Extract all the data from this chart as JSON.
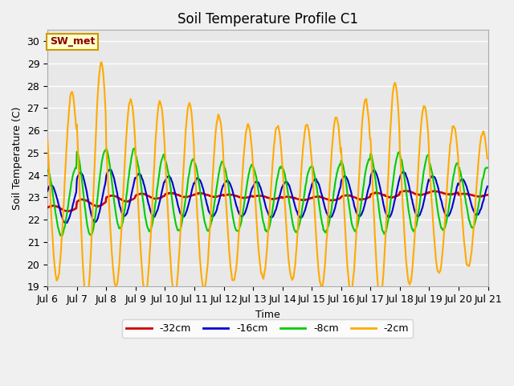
{
  "title": "Soil Temperature Profile C1",
  "xlabel": "Time",
  "ylabel": "Soil Temperature (C)",
  "ylim": [
    19.0,
    30.5
  ],
  "yticks": [
    19.0,
    20.0,
    21.0,
    22.0,
    23.0,
    24.0,
    25.0,
    26.0,
    27.0,
    28.0,
    29.0,
    30.0
  ],
  "x_labels": [
    "Jul 6",
    "Jul 7",
    "Jul 8",
    "Jul 9",
    "Jul 10",
    "Jul 11",
    "Jul 12",
    "Jul 13",
    "Jul 14",
    "Jul 15",
    "Jul 16",
    "Jul 17",
    "Jul 18",
    "Jul 19",
    "Jul 20",
    "Jul 21"
  ],
  "series": {
    "-32cm": {
      "color": "#cc0000",
      "linewidth": 1.8,
      "label": "-32cm"
    },
    "-16cm": {
      "color": "#0000cc",
      "linewidth": 1.5,
      "label": "-16cm"
    },
    "-8cm": {
      "color": "#00cc00",
      "linewidth": 1.5,
      "label": "-8cm"
    },
    "-2cm": {
      "color": "#ffaa00",
      "linewidth": 1.5,
      "label": "-2cm"
    }
  },
  "legend_label": "SW_met",
  "legend_bg": "#ffffcc",
  "legend_border": "#cc9900",
  "fig_bg": "#f0f0f0",
  "plot_bg": "#e8e8e8",
  "grid_color": "#ffffff",
  "title_fontsize": 12,
  "axis_fontsize": 9,
  "tick_fontsize": 9,
  "n_days": 15,
  "pts_per_day": 48,
  "amp_2cm": [
    4.2,
    5.3,
    4.2,
    4.3,
    4.3,
    3.9,
    3.5,
    3.4,
    3.5,
    3.8,
    4.3,
    4.8,
    4.0,
    3.3,
    3.0
  ],
  "mean_2cm": [
    23.5,
    23.7,
    23.2,
    23.0,
    22.9,
    22.8,
    22.75,
    22.8,
    22.8,
    22.8,
    23.1,
    23.3,
    23.1,
    22.9,
    22.9
  ],
  "phase_2cm": 0.58,
  "amp_8cm": [
    1.5,
    1.9,
    1.8,
    1.7,
    1.6,
    1.55,
    1.5,
    1.45,
    1.45,
    1.5,
    1.6,
    1.8,
    1.7,
    1.5,
    1.35
  ],
  "mean_8cm": [
    22.8,
    23.2,
    23.4,
    23.2,
    23.1,
    23.05,
    22.95,
    22.95,
    22.9,
    22.95,
    23.1,
    23.2,
    23.2,
    23.05,
    23.0
  ],
  "phase_8cm": 0.72,
  "amp_16cm": [
    0.85,
    1.1,
    1.05,
    0.95,
    0.9,
    0.85,
    0.8,
    0.8,
    0.8,
    0.85,
    0.9,
    1.05,
    1.0,
    0.9,
    0.8
  ],
  "mean_16cm": [
    22.7,
    23.0,
    23.2,
    23.1,
    23.05,
    23.0,
    22.95,
    22.9,
    22.9,
    22.95,
    23.05,
    23.15,
    23.15,
    23.05,
    23.0
  ],
  "phase_16cm": 0.87,
  "amp_32cm": [
    0.12,
    0.15,
    0.13,
    0.11,
    0.09,
    0.08,
    0.07,
    0.07,
    0.07,
    0.08,
    0.09,
    0.1,
    0.09,
    0.07,
    0.06
  ],
  "mean_32cm": [
    22.5,
    22.75,
    22.95,
    23.05,
    23.1,
    23.1,
    23.05,
    23.0,
    22.95,
    22.95,
    23.0,
    23.1,
    23.2,
    23.2,
    23.1
  ],
  "phase_32cm": 0.95
}
